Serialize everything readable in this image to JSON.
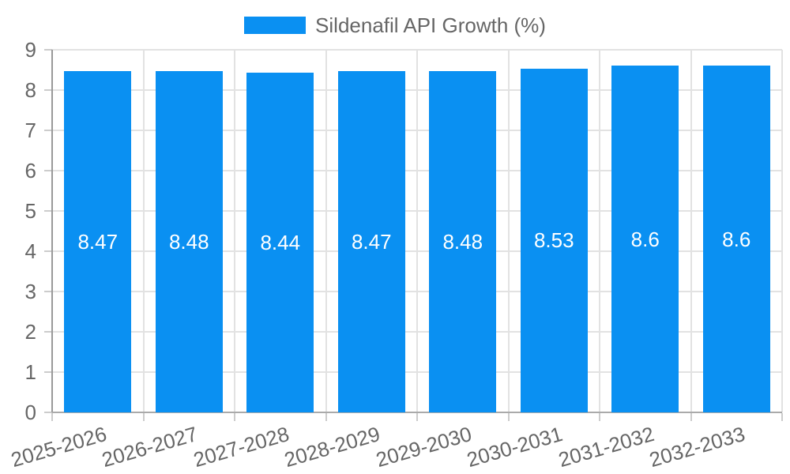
{
  "chart_data": {
    "type": "bar",
    "title": "",
    "legend": {
      "position": "top",
      "label": "Sildenafil API Growth (%)"
    },
    "categories": [
      "2025-2026",
      "2026-2027",
      "2027-2028",
      "2028-2029",
      "2029-2030",
      "2030-2031",
      "2031-2032",
      "2032-2033"
    ],
    "series": [
      {
        "name": "Sildenafil API Growth (%)",
        "values": [
          8.47,
          8.48,
          8.44,
          8.47,
          8.48,
          8.53,
          8.6,
          8.6
        ]
      }
    ],
    "bar_value_labels": [
      "8.47",
      "8.48",
      "8.44",
      "8.47",
      "8.48",
      "8.53",
      "8.6",
      "8.6"
    ],
    "xlabel": "",
    "ylabel": "",
    "ylim": [
      0,
      9
    ],
    "yticks": [
      0,
      1,
      2,
      3,
      4,
      5,
      6,
      7,
      8,
      9
    ],
    "grid": true,
    "x_tick_rotation_deg": -16,
    "colors": {
      "bar": "#0a90f2",
      "bar_label": "#ffffff",
      "axis_text": "#666666",
      "gridline": "#e2e2e2",
      "axis_line": "#999999",
      "baseline": "#aaaaaa",
      "tick": "#cccccc",
      "background": "#ffffff"
    }
  }
}
